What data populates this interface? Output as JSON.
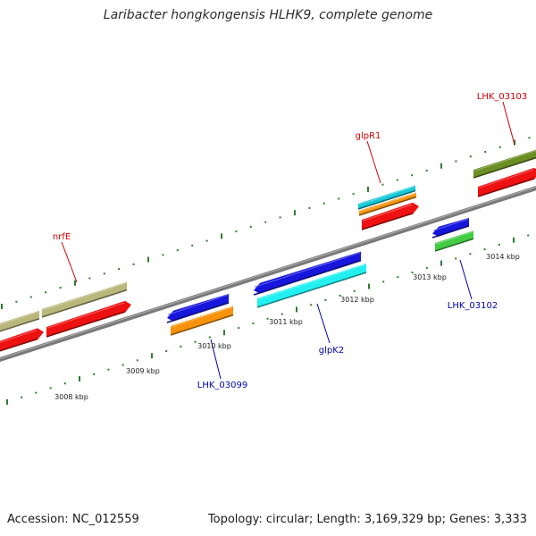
{
  "title": "Laribacter hongkongensis HLHK9, complete genome",
  "footer": {
    "accession": "Accession: NC_012559",
    "summary": "Topology: circular; Length: 3,169,329 bp; Genes: 3,333"
  },
  "kbp_labels": [
    "3008 kbp",
    "3009 kbp",
    "3010 kbp",
    "3011 kbp",
    "3012 kbp",
    "3013 kbp",
    "3014 kbp"
  ],
  "gene_labels": {
    "nrfE": "nrfE",
    "glpR1": "glpR1",
    "lhk03103": "LHK_03103",
    "lhk03099": "LHK_03099",
    "glpK2": "glpK2",
    "lhk03102": "LHK_03102"
  },
  "colors": {
    "forward_label": "#cc0000",
    "reverse_label": "#0000aa",
    "tick": "#2e7d2e",
    "backbone": "#7f7f7f",
    "cds_red": "#ee1111",
    "khaki": "#b9b77a",
    "olive": "#6b8e23",
    "cyan": "#16c8d8",
    "orange": "#f7920a",
    "blue": "#1616dd",
    "green": "#44cc44",
    "aqua": "#22f0f0"
  }
}
